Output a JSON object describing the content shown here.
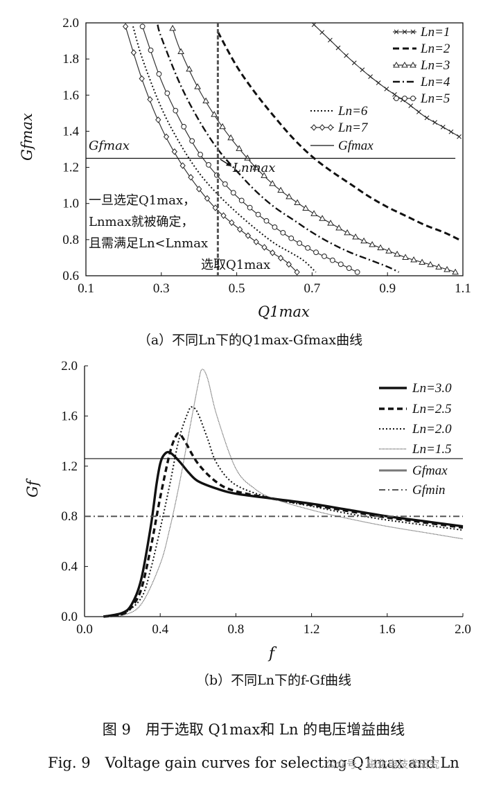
{
  "chart_data": [
    {
      "type": "line",
      "panel_caption": "（a）不同Ln下的Q1max-Gfmax曲线",
      "xlabel": "Q1max",
      "ylabel": "Gfmax",
      "xlim": [
        0.1,
        1.1
      ],
      "ylim": [
        0.6,
        2.0
      ],
      "x_ticks": [
        "0.1",
        "0.3",
        "0.5",
        "0.7",
        "0.9",
        "1.1"
      ],
      "y_ticks": [
        "0.6",
        "0.8",
        "1.0",
        "1.2",
        "1.4",
        "1.6",
        "1.8",
        "2.0"
      ],
      "legend_position": "top-right",
      "series": [
        {
          "name": "Ln=1",
          "style": "x-marker",
          "points": [
            [
              0.705,
              1.99
            ],
            [
              0.75,
              1.9
            ],
            [
              0.8,
              1.8
            ],
            [
              0.85,
              1.71
            ],
            [
              0.9,
              1.63
            ],
            [
              0.95,
              1.56
            ],
            [
              1.0,
              1.48
            ],
            [
              1.05,
              1.42
            ],
            [
              1.09,
              1.37
            ]
          ]
        },
        {
          "name": "Ln=2",
          "style": "dashed",
          "points": [
            [
              0.45,
              1.95
            ],
            [
              0.5,
              1.76
            ],
            [
              0.55,
              1.61
            ],
            [
              0.6,
              1.48
            ],
            [
              0.65,
              1.36
            ],
            [
              0.7,
              1.26
            ],
            [
              0.75,
              1.18
            ],
            [
              0.8,
              1.11
            ],
            [
              0.85,
              1.04
            ],
            [
              0.9,
              0.98
            ],
            [
              0.95,
              0.93
            ],
            [
              1.0,
              0.88
            ],
            [
              1.05,
              0.84
            ],
            [
              1.09,
              0.8
            ]
          ]
        },
        {
          "name": "Ln=3",
          "style": "triangle-marker",
          "points": [
            [
              0.33,
              1.97
            ],
            [
              0.35,
              1.85
            ],
            [
              0.4,
              1.63
            ],
            [
              0.45,
              1.46
            ],
            [
              0.5,
              1.32
            ],
            [
              0.55,
              1.2
            ],
            [
              0.6,
              1.1
            ],
            [
              0.65,
              1.02
            ],
            [
              0.7,
              0.95
            ],
            [
              0.75,
              0.89
            ],
            [
              0.8,
              0.83
            ],
            [
              0.85,
              0.78
            ],
            [
              0.9,
              0.74
            ],
            [
              0.95,
              0.7
            ],
            [
              1.0,
              0.67
            ],
            [
              1.05,
              0.64
            ],
            [
              1.08,
              0.62
            ]
          ]
        },
        {
          "name": "Ln=4",
          "style": "dash-dot",
          "points": [
            [
              0.29,
              1.99
            ],
            [
              0.3,
              1.92
            ],
            [
              0.35,
              1.66
            ],
            [
              0.4,
              1.46
            ],
            [
              0.45,
              1.3
            ],
            [
              0.5,
              1.18
            ],
            [
              0.55,
              1.07
            ],
            [
              0.6,
              0.98
            ],
            [
              0.65,
              0.91
            ],
            [
              0.7,
              0.84
            ],
            [
              0.75,
              0.78
            ],
            [
              0.8,
              0.73
            ],
            [
              0.85,
              0.69
            ],
            [
              0.9,
              0.65
            ],
            [
              0.93,
              0.62
            ]
          ]
        },
        {
          "name": "Ln=5",
          "style": "circle-marker",
          "points": [
            [
              0.25,
              1.98
            ],
            [
              0.3,
              1.68
            ],
            [
              0.35,
              1.46
            ],
            [
              0.4,
              1.28
            ],
            [
              0.45,
              1.15
            ],
            [
              0.5,
              1.04
            ],
            [
              0.55,
              0.95
            ],
            [
              0.6,
              0.87
            ],
            [
              0.65,
              0.8
            ],
            [
              0.7,
              0.74
            ],
            [
              0.75,
              0.69
            ],
            [
              0.8,
              0.64
            ],
            [
              0.82,
              0.62
            ]
          ]
        },
        {
          "name": "Ln=6",
          "style": "dotted",
          "points": [
            [
              0.225,
              1.98
            ],
            [
              0.25,
              1.8
            ],
            [
              0.3,
              1.53
            ],
            [
              0.35,
              1.33
            ],
            [
              0.4,
              1.17
            ],
            [
              0.45,
              1.05
            ],
            [
              0.5,
              0.95
            ],
            [
              0.55,
              0.86
            ],
            [
              0.6,
              0.78
            ],
            [
              0.65,
              0.72
            ],
            [
              0.68,
              0.68
            ],
            [
              0.71,
              0.62
            ]
          ]
        },
        {
          "name": "Ln=7",
          "style": "diamond-marker",
          "points": [
            [
              0.205,
              1.98
            ],
            [
              0.25,
              1.68
            ],
            [
              0.3,
              1.42
            ],
            [
              0.35,
              1.23
            ],
            [
              0.4,
              1.08
            ],
            [
              0.45,
              0.96
            ],
            [
              0.5,
              0.87
            ],
            [
              0.55,
              0.79
            ],
            [
              0.6,
              0.72
            ],
            [
              0.63,
              0.68
            ],
            [
              0.66,
              0.62
            ]
          ]
        },
        {
          "name": "Gfmax",
          "style": "solid",
          "points": [
            [
              0.1,
              1.25
            ],
            [
              1.08,
              1.25
            ]
          ]
        }
      ],
      "vertical_marker": {
        "x": 0.45,
        "label": "选取Q1max"
      },
      "annotations": {
        "gfmax_label": "Gfmax",
        "lnmax_label": "Lnmax",
        "note_line1": "一旦选定Q1max，",
        "note_line2": "Lnmax就被确定，",
        "note_line3": "且需满足Ln<Lnmax"
      }
    },
    {
      "type": "line",
      "panel_caption": "（b）不同Ln下的f-Gf曲线",
      "xlabel": "f",
      "ylabel": "Gf",
      "xlim": [
        0.0,
        2.0
      ],
      "ylim": [
        0.0,
        2.0
      ],
      "x_ticks": [
        "0.0",
        "0.4",
        "0.8",
        "1.2",
        "1.6",
        "2.0"
      ],
      "y_ticks": [
        "0.0",
        "0.4",
        "0.8",
        "1.2",
        "1.6",
        "2.0"
      ],
      "legend_position": "top-right",
      "series": [
        {
          "name": "Ln=3.0",
          "style": "thick-solid",
          "points": [
            [
              0.1,
              0.0
            ],
            [
              0.2,
              0.03
            ],
            [
              0.25,
              0.1
            ],
            [
              0.3,
              0.3
            ],
            [
              0.35,
              0.72
            ],
            [
              0.38,
              1.05
            ],
            [
              0.4,
              1.22
            ],
            [
              0.42,
              1.29
            ],
            [
              0.45,
              1.31
            ],
            [
              0.5,
              1.24
            ],
            [
              0.55,
              1.15
            ],
            [
              0.6,
              1.08
            ],
            [
              0.7,
              1.02
            ],
            [
              0.8,
              0.98
            ],
            [
              1.0,
              0.94
            ],
            [
              1.2,
              0.9
            ],
            [
              1.4,
              0.85
            ],
            [
              1.6,
              0.8
            ],
            [
              1.8,
              0.76
            ],
            [
              2.0,
              0.72
            ]
          ]
        },
        {
          "name": "Ln=2.5",
          "style": "thick-dashed",
          "points": [
            [
              0.1,
              0.0
            ],
            [
              0.2,
              0.02
            ],
            [
              0.25,
              0.08
            ],
            [
              0.3,
              0.22
            ],
            [
              0.35,
              0.55
            ],
            [
              0.4,
              0.95
            ],
            [
              0.45,
              1.3
            ],
            [
              0.48,
              1.43
            ],
            [
              0.5,
              1.46
            ],
            [
              0.53,
              1.4
            ],
            [
              0.6,
              1.22
            ],
            [
              0.7,
              1.07
            ],
            [
              0.8,
              1.0
            ],
            [
              1.0,
              0.94
            ],
            [
              1.2,
              0.89
            ],
            [
              1.4,
              0.84
            ],
            [
              1.6,
              0.79
            ],
            [
              1.8,
              0.75
            ],
            [
              2.0,
              0.71
            ]
          ]
        },
        {
          "name": "Ln=2.0",
          "style": "dotted",
          "points": [
            [
              0.1,
              0.0
            ],
            [
              0.2,
              0.02
            ],
            [
              0.3,
              0.15
            ],
            [
              0.35,
              0.38
            ],
            [
              0.4,
              0.7
            ],
            [
              0.45,
              1.05
            ],
            [
              0.5,
              1.42
            ],
            [
              0.55,
              1.64
            ],
            [
              0.57,
              1.67
            ],
            [
              0.6,
              1.62
            ],
            [
              0.65,
              1.42
            ],
            [
              0.7,
              1.22
            ],
            [
              0.8,
              1.05
            ],
            [
              1.0,
              0.94
            ],
            [
              1.2,
              0.88
            ],
            [
              1.4,
              0.82
            ],
            [
              1.6,
              0.77
            ],
            [
              1.8,
              0.73
            ],
            [
              2.0,
              0.69
            ]
          ]
        },
        {
          "name": "Ln=1.5",
          "style": "sparse-dotted",
          "points": [
            [
              0.1,
              0.0
            ],
            [
              0.2,
              0.01
            ],
            [
              0.3,
              0.1
            ],
            [
              0.4,
              0.42
            ],
            [
              0.45,
              0.7
            ],
            [
              0.5,
              1.05
            ],
            [
              0.55,
              1.45
            ],
            [
              0.6,
              1.85
            ],
            [
              0.62,
              1.97
            ],
            [
              0.65,
              1.9
            ],
            [
              0.7,
              1.6
            ],
            [
              0.8,
              1.18
            ],
            [
              0.9,
              1.02
            ],
            [
              1.0,
              0.94
            ],
            [
              1.2,
              0.85
            ],
            [
              1.4,
              0.78
            ],
            [
              1.6,
              0.72
            ],
            [
              1.8,
              0.67
            ],
            [
              2.0,
              0.62
            ]
          ]
        },
        {
          "name": "Gfmax",
          "style": "solid",
          "points": [
            [
              0.0,
              1.26
            ],
            [
              2.0,
              1.26
            ]
          ]
        },
        {
          "name": "Gfmin",
          "style": "gray-dash-dot",
          "points": [
            [
              0.0,
              0.8
            ],
            [
              2.0,
              0.8
            ]
          ]
        }
      ]
    }
  ],
  "figure_caption_cn": "图 9　用于选取 Q1max和 Ln 的电压增益曲线",
  "figure_caption_en": "Fig. 9　Voltage gain curves for selecting Q1max and Ln",
  "watermark": "公众号 · 磁化电技术研究"
}
